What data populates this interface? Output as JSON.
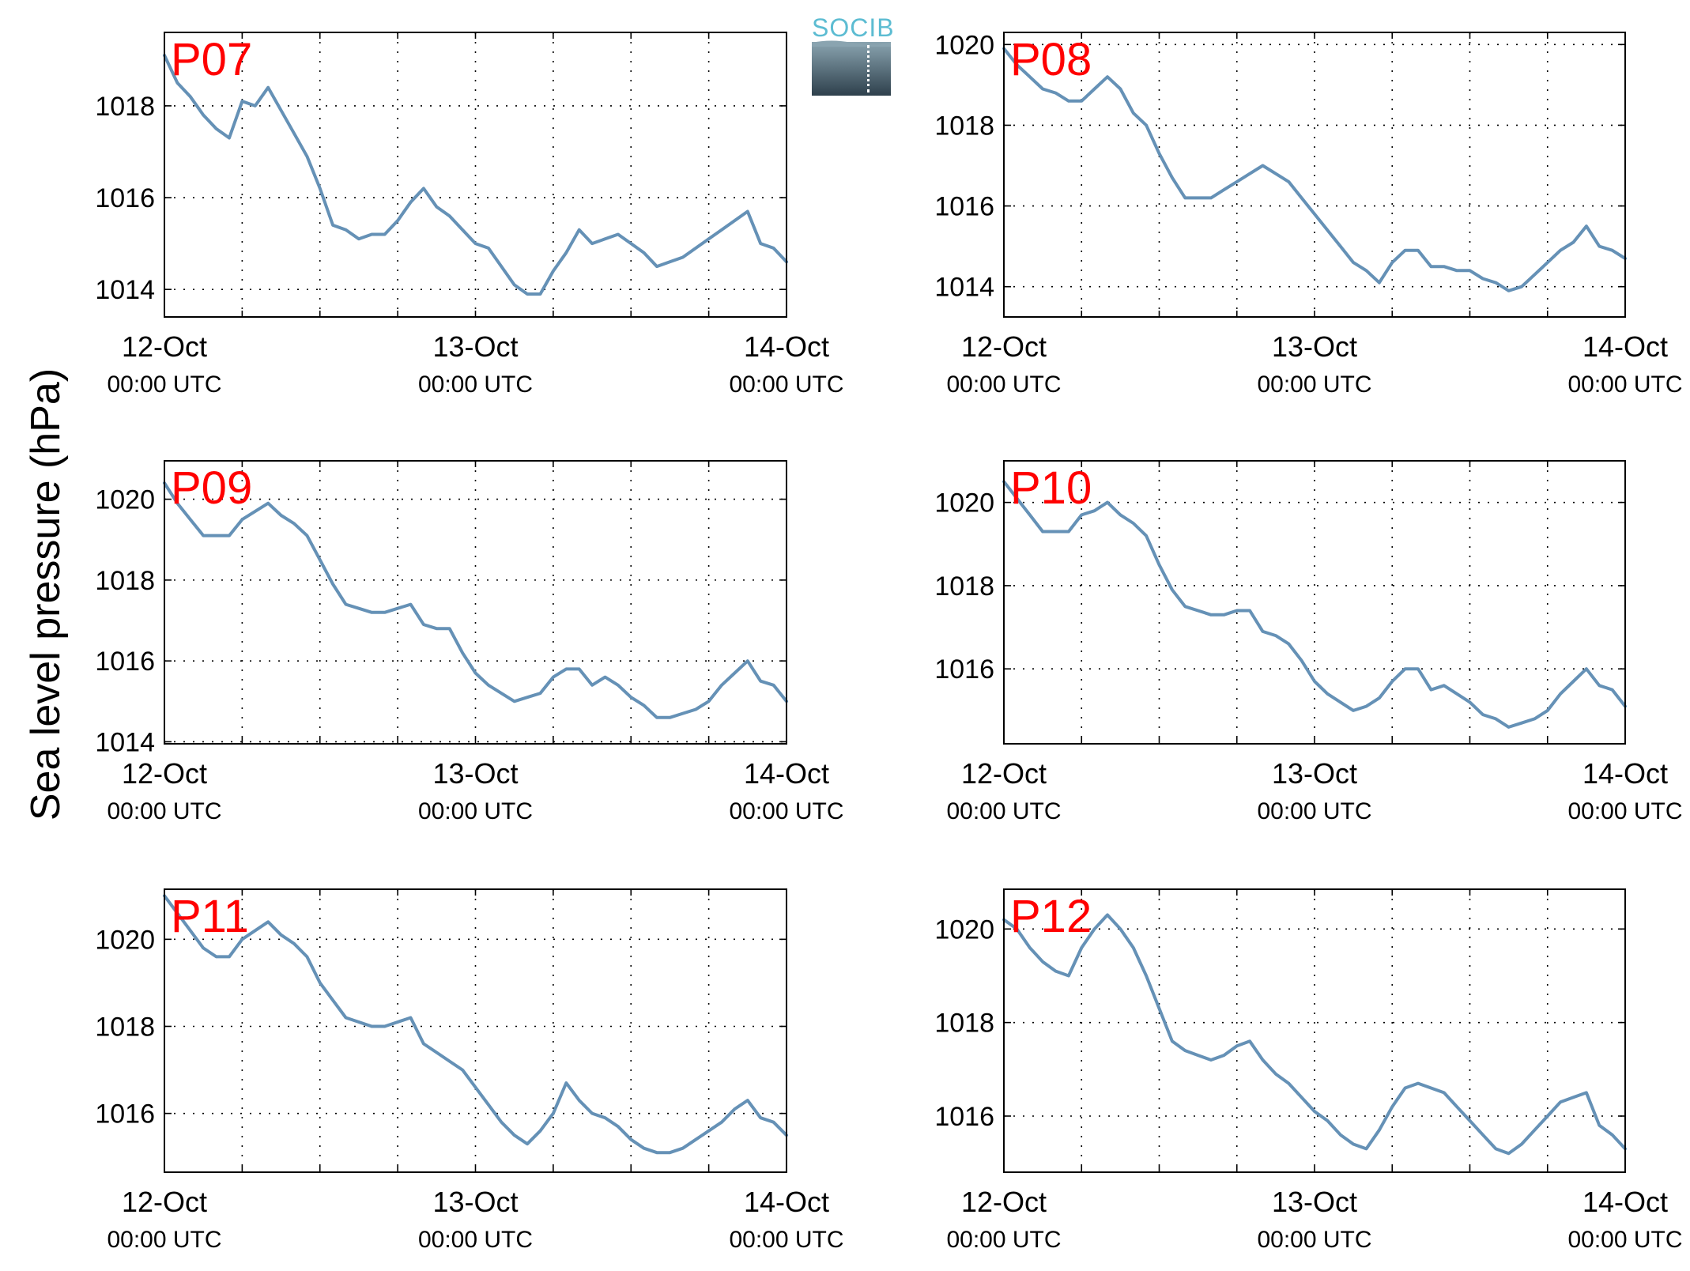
{
  "figure": {
    "ylabel": "Sea level pressure (hPa)",
    "logo_text": "SOCIB",
    "line_color": "#6591b6",
    "label_color": "#ff0000",
    "xaxis": {
      "range_hours": [
        0,
        48
      ],
      "ticks": [
        {
          "hour": 0,
          "date": "12-Oct",
          "time": "00:00 UTC"
        },
        {
          "hour": 24,
          "date": "13-Oct",
          "time": "00:00 UTC"
        },
        {
          "hour": 48,
          "date": "14-Oct",
          "time": "00:00 UTC"
        }
      ],
      "grid_every_hours": 6
    }
  },
  "chart_data": [
    {
      "type": "line",
      "label": "P07",
      "ylim": [
        1013.4,
        1019.6
      ],
      "yticks": [
        1014,
        1016,
        1018
      ],
      "grid": true,
      "x": [
        0,
        1,
        2,
        3,
        4,
        5,
        6,
        7,
        8,
        9,
        10,
        11,
        12,
        13,
        14,
        15,
        16,
        17,
        18,
        19,
        20,
        21,
        22,
        23,
        24,
        25,
        26,
        27,
        28,
        29,
        30,
        31,
        32,
        33,
        34,
        35,
        36,
        37,
        38,
        39,
        40,
        41,
        42,
        43,
        44,
        45,
        46,
        47,
        48
      ],
      "values": [
        1019.1,
        1018.5,
        1018.2,
        1017.8,
        1017.5,
        1017.3,
        1018.1,
        1018.0,
        1018.4,
        1017.9,
        1017.4,
        1016.9,
        1016.2,
        1015.4,
        1015.3,
        1015.1,
        1015.2,
        1015.2,
        1015.5,
        1015.9,
        1016.2,
        1015.8,
        1015.6,
        1015.3,
        1015.0,
        1014.9,
        1014.5,
        1014.1,
        1013.9,
        1013.9,
        1014.4,
        1014.8,
        1015.3,
        1015.0,
        1015.1,
        1015.2,
        1015.0,
        1014.8,
        1014.5,
        1014.6,
        1014.7,
        1014.9,
        1015.1,
        1015.3,
        1015.5,
        1015.7,
        1015.0,
        1014.9,
        1014.6
      ]
    },
    {
      "type": "line",
      "label": "P08",
      "ylim": [
        1013.25,
        1020.3
      ],
      "yticks": [
        1014,
        1016,
        1018,
        1020
      ],
      "grid": true,
      "x": [
        0,
        1,
        2,
        3,
        4,
        5,
        6,
        7,
        8,
        9,
        10,
        11,
        12,
        13,
        14,
        15,
        16,
        17,
        18,
        19,
        20,
        21,
        22,
        23,
        24,
        25,
        26,
        27,
        28,
        29,
        30,
        31,
        32,
        33,
        34,
        35,
        36,
        37,
        38,
        39,
        40,
        41,
        42,
        43,
        44,
        45,
        46,
        47,
        48
      ],
      "values": [
        1019.9,
        1019.5,
        1019.2,
        1018.9,
        1018.8,
        1018.6,
        1018.6,
        1018.9,
        1019.2,
        1018.9,
        1018.3,
        1018.0,
        1017.3,
        1016.7,
        1016.2,
        1016.2,
        1016.2,
        1016.4,
        1016.6,
        1016.8,
        1017.0,
        1016.8,
        1016.6,
        1016.2,
        1015.8,
        1015.4,
        1015.0,
        1014.6,
        1014.4,
        1014.1,
        1014.6,
        1014.9,
        1014.9,
        1014.5,
        1014.5,
        1014.4,
        1014.4,
        1014.2,
        1014.1,
        1013.9,
        1014.0,
        1014.3,
        1014.6,
        1014.9,
        1015.1,
        1015.5,
        1015.0,
        1014.9,
        1014.7
      ]
    },
    {
      "type": "line",
      "label": "P09",
      "ylim": [
        1013.95,
        1020.95
      ],
      "yticks": [
        1014,
        1016,
        1018,
        1020
      ],
      "grid": true,
      "x": [
        0,
        1,
        2,
        3,
        4,
        5,
        6,
        7,
        8,
        9,
        10,
        11,
        12,
        13,
        14,
        15,
        16,
        17,
        18,
        19,
        20,
        21,
        22,
        23,
        24,
        25,
        26,
        27,
        28,
        29,
        30,
        31,
        32,
        33,
        34,
        35,
        36,
        37,
        38,
        39,
        40,
        41,
        42,
        43,
        44,
        45,
        46,
        47,
        48
      ],
      "values": [
        1020.4,
        1019.9,
        1019.5,
        1019.1,
        1019.1,
        1019.1,
        1019.5,
        1019.7,
        1019.9,
        1019.6,
        1019.4,
        1019.1,
        1018.5,
        1017.9,
        1017.4,
        1017.3,
        1017.2,
        1017.2,
        1017.3,
        1017.4,
        1016.9,
        1016.8,
        1016.8,
        1016.2,
        1015.7,
        1015.4,
        1015.2,
        1015.0,
        1015.1,
        1015.2,
        1015.6,
        1015.8,
        1015.8,
        1015.4,
        1015.6,
        1015.4,
        1015.1,
        1014.9,
        1014.6,
        1014.6,
        1014.7,
        1014.8,
        1015.0,
        1015.4,
        1015.7,
        1016.0,
        1015.5,
        1015.4,
        1015.0
      ]
    },
    {
      "type": "line",
      "label": "P10",
      "ylim": [
        1014.2,
        1021.0
      ],
      "yticks": [
        1016,
        1018,
        1020
      ],
      "grid": true,
      "x": [
        0,
        1,
        2,
        3,
        4,
        5,
        6,
        7,
        8,
        9,
        10,
        11,
        12,
        13,
        14,
        15,
        16,
        17,
        18,
        19,
        20,
        21,
        22,
        23,
        24,
        25,
        26,
        27,
        28,
        29,
        30,
        31,
        32,
        33,
        34,
        35,
        36,
        37,
        38,
        39,
        40,
        41,
        42,
        43,
        44,
        45,
        46,
        47,
        48
      ],
      "values": [
        1020.5,
        1020.1,
        1019.7,
        1019.3,
        1019.3,
        1019.3,
        1019.7,
        1019.8,
        1020.0,
        1019.7,
        1019.5,
        1019.2,
        1018.5,
        1017.9,
        1017.5,
        1017.4,
        1017.3,
        1017.3,
        1017.4,
        1017.4,
        1016.9,
        1016.8,
        1016.6,
        1016.2,
        1015.7,
        1015.4,
        1015.2,
        1015.0,
        1015.1,
        1015.3,
        1015.7,
        1016.0,
        1016.0,
        1015.5,
        1015.6,
        1015.4,
        1015.2,
        1014.9,
        1014.8,
        1014.6,
        1014.7,
        1014.8,
        1015.0,
        1015.4,
        1015.7,
        1016.0,
        1015.6,
        1015.5,
        1015.1
      ]
    },
    {
      "type": "line",
      "label": "P11",
      "ylim": [
        1014.65,
        1021.15
      ],
      "yticks": [
        1016,
        1018,
        1020
      ],
      "grid": true,
      "x": [
        0,
        1,
        2,
        3,
        4,
        5,
        6,
        7,
        8,
        9,
        10,
        11,
        12,
        13,
        14,
        15,
        16,
        17,
        18,
        19,
        20,
        21,
        22,
        23,
        24,
        25,
        26,
        27,
        28,
        29,
        30,
        31,
        32,
        33,
        34,
        35,
        36,
        37,
        38,
        39,
        40,
        41,
        42,
        43,
        44,
        45,
        46,
        47,
        48
      ],
      "values": [
        1021.0,
        1020.6,
        1020.2,
        1019.8,
        1019.6,
        1019.6,
        1020.0,
        1020.2,
        1020.4,
        1020.1,
        1019.9,
        1019.6,
        1019.0,
        1018.6,
        1018.2,
        1018.1,
        1018.0,
        1018.0,
        1018.1,
        1018.2,
        1017.6,
        1017.4,
        1017.2,
        1017.0,
        1016.6,
        1016.2,
        1015.8,
        1015.5,
        1015.3,
        1015.6,
        1016.0,
        1016.7,
        1016.3,
        1016.0,
        1015.9,
        1015.7,
        1015.4,
        1015.2,
        1015.1,
        1015.1,
        1015.2,
        1015.4,
        1015.6,
        1015.8,
        1016.1,
        1016.3,
        1015.9,
        1015.8,
        1015.5
      ]
    },
    {
      "type": "line",
      "label": "P12",
      "ylim": [
        1014.8,
        1020.85
      ],
      "yticks": [
        1016,
        1018,
        1020
      ],
      "grid": true,
      "x": [
        0,
        1,
        2,
        3,
        4,
        5,
        6,
        7,
        8,
        9,
        10,
        11,
        12,
        13,
        14,
        15,
        16,
        17,
        18,
        19,
        20,
        21,
        22,
        23,
        24,
        25,
        26,
        27,
        28,
        29,
        30,
        31,
        32,
        33,
        34,
        35,
        36,
        37,
        38,
        39,
        40,
        41,
        42,
        43,
        44,
        45,
        46,
        47,
        48
      ],
      "values": [
        1020.2,
        1020.0,
        1019.6,
        1019.3,
        1019.1,
        1019.0,
        1019.6,
        1020.0,
        1020.3,
        1020.0,
        1019.6,
        1019.0,
        1018.3,
        1017.6,
        1017.4,
        1017.3,
        1017.2,
        1017.3,
        1017.5,
        1017.6,
        1017.2,
        1016.9,
        1016.7,
        1016.4,
        1016.1,
        1015.9,
        1015.6,
        1015.4,
        1015.3,
        1015.7,
        1016.2,
        1016.6,
        1016.7,
        1016.6,
        1016.5,
        1016.2,
        1015.9,
        1015.6,
        1015.3,
        1015.2,
        1015.4,
        1015.7,
        1016.0,
        1016.3,
        1016.4,
        1016.5,
        1015.8,
        1015.6,
        1015.3
      ]
    }
  ]
}
